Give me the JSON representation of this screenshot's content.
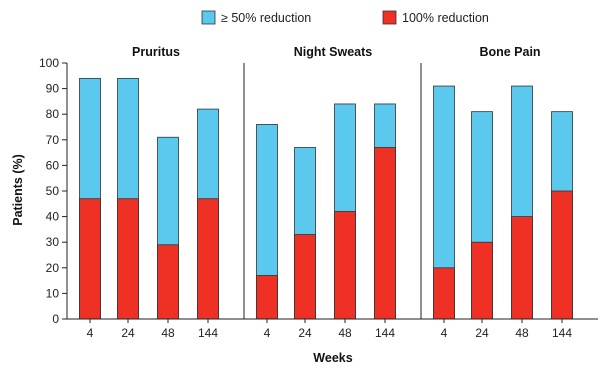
{
  "chart_data": {
    "type": "bar",
    "stacked": false,
    "overlap": true,
    "groups": [
      "Pruritus",
      "Night Sweats",
      "Bone Pain"
    ],
    "categories": [
      "4",
      "24",
      "48",
      "144"
    ],
    "series": [
      {
        "name": "≥ 50% reduction",
        "color": "#5bc8ee",
        "values": [
          [
            94,
            94,
            71,
            82
          ],
          [
            76,
            67,
            84,
            84
          ],
          [
            91,
            81,
            91,
            81
          ]
        ]
      },
      {
        "name": "100% reduction",
        "color": "#ee3124",
        "values": [
          [
            47,
            47,
            29,
            47
          ],
          [
            17,
            33,
            42,
            67
          ],
          [
            20,
            30,
            40,
            50
          ]
        ]
      }
    ],
    "xlabel": "Weeks",
    "ylabel": "Patients (%)",
    "ylim": [
      0,
      100
    ],
    "yticks": [
      0,
      10,
      20,
      30,
      40,
      50,
      60,
      70,
      80,
      90,
      100
    ],
    "grid": false,
    "legend_position": "top-center"
  }
}
